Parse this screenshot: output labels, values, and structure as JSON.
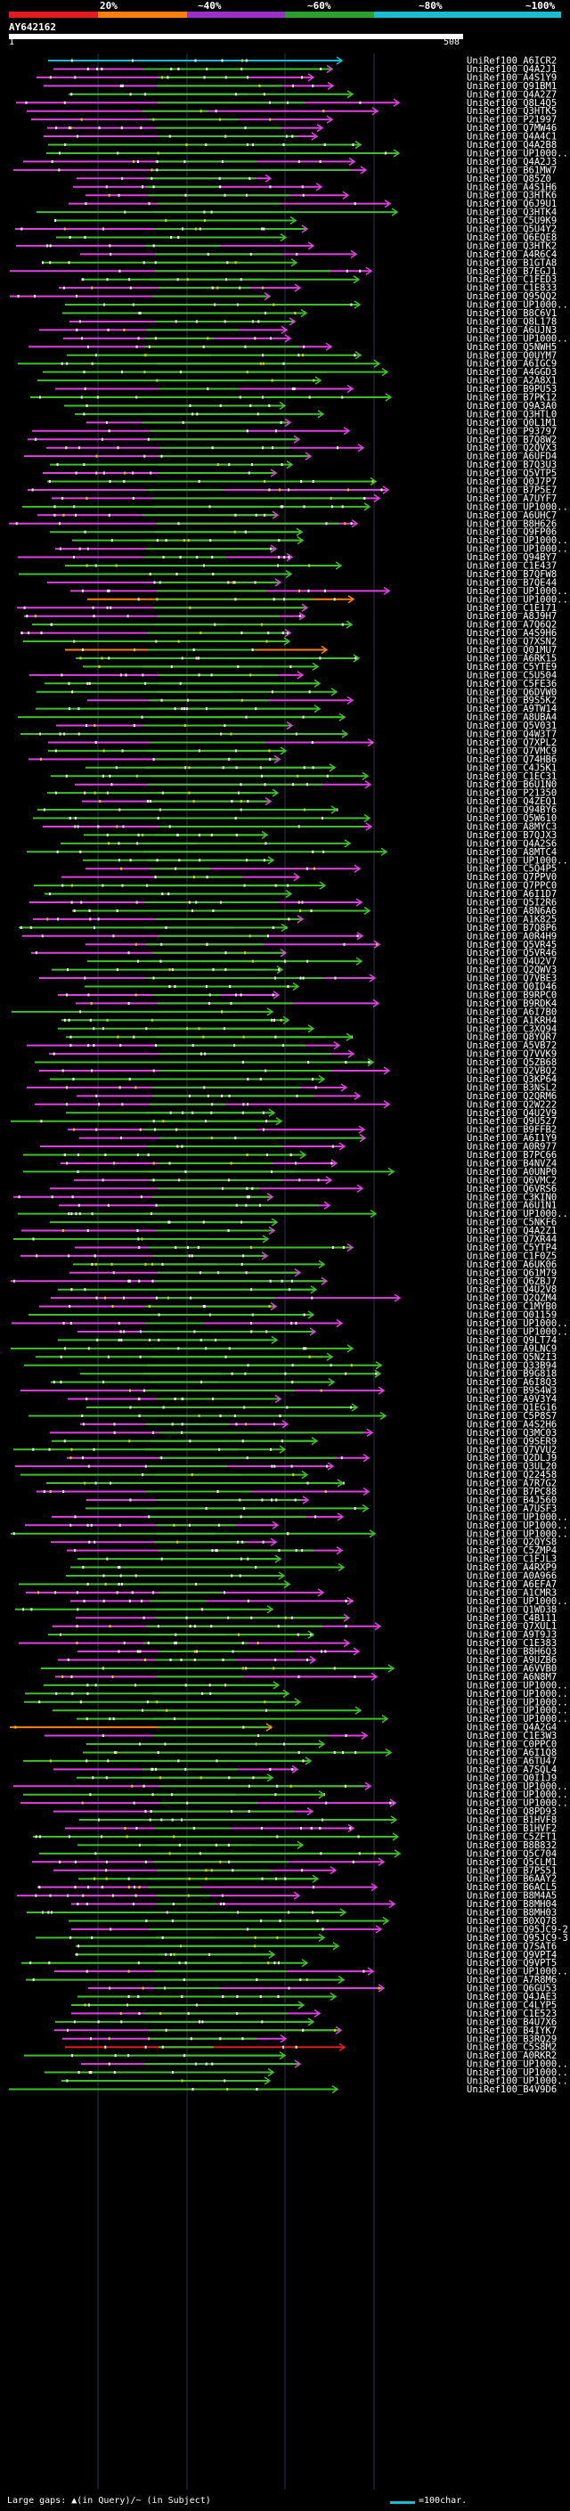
{
  "header": {
    "percent_labels": [
      "20%",
      "~40%",
      "~60%",
      "~80%",
      "~100%"
    ],
    "color_scale": [
      {
        "label": "20%",
        "color": "#e41a1c"
      },
      {
        "label": "~40%",
        "color": "#ff7f0e"
      },
      {
        "label": "~60%",
        "color": "#9b30c8"
      },
      {
        "label": "~80%",
        "color": "#2ca02c"
      },
      {
        "label": "~100%",
        "color": "#17becf"
      }
    ],
    "query_name": "AY642162",
    "scale_start": "1",
    "scale_end": "508"
  },
  "colors": {
    "magenta": "#e040e0",
    "green": "#3fbf2a",
    "orange": "#ff7f0e",
    "cyan": "#17becf",
    "red": "#e41a1c",
    "yellow": "#d8d800",
    "grid": "#2a3550"
  },
  "hits": [
    "UniRef100_A6ICR2",
    "UniRef100_Q4A2J1",
    "UniRef100_A4S1Y9",
    "UniRef100_Q91BM1",
    "UniRef100_Q4A2Z7",
    "UniRef100_Q8L4Q5",
    "UniRef100_Q3HTK5",
    "UniRef100_P21997",
    "UniRef100_Q7MW46",
    "UniRef100_Q4A4C1",
    "UniRef100_Q4A2B8",
    "UniRef100_UP1000...",
    "UniRef100_Q4A2J3",
    "UniRef100_B61MW7",
    "UniRef100_Q85Z0",
    "UniRef100_A4S1H6",
    "UniRef100_Q3HTK6",
    "UniRef100_Q6J9U1",
    "UniRef100_Q3HTK4",
    "UniRef100_C5U9K9",
    "UniRef100_Q5U4Y2",
    "UniRef100_Q6EQE8",
    "UniRef100_Q3HTK2",
    "UniRef100_A4R6C4",
    "UniRef100_B1GTA8",
    "UniRef100_B7EGJ1",
    "UniRef100_C1FED3",
    "UniRef100_C1E833",
    "UniRef100_Q95QQ2",
    "UniRef100_UP1000...",
    "UniRef100_B8C6V1",
    "UniRef100_Q8L178",
    "UniRef100_A6UJN3",
    "UniRef100_UP1000...",
    "UniRef100_Q5NWH5",
    "UniRef100_Q0UYM7",
    "UniRef100_A6IGC9",
    "UniRef100_A4GGD3",
    "UniRef100_A2A8X1",
    "UniRef100_B9PU53",
    "UniRef100_B7PK12",
    "UniRef100_Q9A3A0",
    "UniRef100_Q3HTL0",
    "UniRef100_Q0L1M1",
    "UniRef100_P93797",
    "UniRef100_B7Q8W2",
    "UniRef100_Q2QVX3",
    "UniRef100_A6UFD4",
    "UniRef100_B7Q3U3",
    "UniRef100_Q5VTP5",
    "UniRef100_Q0J7P7",
    "UniRef100_B7P5E7",
    "UniRef100_A7UYF7",
    "UniRef100_UP1000...",
    "UniRef100_A6UHC7",
    "UniRef100_B8H626",
    "UniRef100_Q9FP06",
    "UniRef100_UP1000...",
    "UniRef100_UP1000...",
    "UniRef100_Q94BY7",
    "UniRef100_C1E437",
    "UniRef100_B7QFW8",
    "UniRef100_B7QE44",
    "UniRef100_UP1000...",
    "UniRef100_UP1000...",
    "UniRef100_C1E171",
    "UniRef100_A8J9H7",
    "UniRef100_A7Q6Q2",
    "UniRef100_A4S9H6",
    "UniRef100_Q7XSN2",
    "UniRef100_Q01MU7",
    "UniRef100_A6RK15",
    "UniRef100_C5YTE9",
    "UniRef100_C5U504",
    "UniRef100_C5FE36",
    "UniRef100_Q6DVW0",
    "UniRef100_B9S5K2",
    "UniRef100_A9TW14",
    "UniRef100_A8UBA4",
    "UniRef100_Q5V031",
    "UniRef100_Q4W3T7",
    "UniRef100_Q7XPL2",
    "UniRef100_Q7VMC9",
    "UniRef100_Q74HB6",
    "UniRef100_C4J5K1",
    "UniRef100_C1EC31",
    "UniRef100_B6U1N0",
    "UniRef100_P21350",
    "UniRef100_Q4ZEQ1",
    "UniRef100_Q94BY6",
    "UniRef100_Q5W610",
    "UniRef100_A8MYC3",
    "UniRef100_B7QJX3",
    "UniRef100_Q4A2S6",
    "UniRef100_A8MTC4",
    "UniRef100_UP1000...",
    "UniRef100_C5Q4P5",
    "UniRef100_Q7PPV0",
    "UniRef100_Q7PPC0",
    "UniRef100_A6I1D7",
    "UniRef100_Q5I2R6",
    "UniRef100_A8N6A6",
    "UniRef100_A1K825",
    "UniRef100_B7Q8P6",
    "UniRef100_A0R4H9",
    "UniRef100_Q5VR45",
    "UniRef100_Q5VR46",
    "UniRef100_Q4U2V7",
    "UniRef100_Q2QWV3",
    "UniRef100_Q7VBE3",
    "UniRef100_Q0ID46",
    "UniRef100_B9RPC0",
    "UniRef100_B9RDK4",
    "UniRef100_A6I7B0",
    "UniRef100_A1KRH4",
    "UniRef100_C3XQ94",
    "UniRef100_Q8YQR7",
    "UniRef100_A5VB72",
    "UniRef100_Q7VVK9",
    "UniRef100_Q5ZB68",
    "UniRef100_Q2VBQ2",
    "UniRef100_Q3KP64",
    "UniRef100_B3NSL2",
    "UniRef100_Q2QRM6",
    "UniRef100_Q2W222",
    "UniRef100_Q4U2V9",
    "UniRef100_Q9U527",
    "UniRef100_B9FFB2",
    "UniRef100_A6I1Y9",
    "UniRef100_A0R977",
    "UniRef100_B7PC66",
    "UniRef100_B4NVZ4",
    "UniRef100_A0UNP0",
    "UniRef100_Q6VMC2",
    "UniRef100_Q6VRS6",
    "UniRef100_C3KIN0",
    "UniRef100_A6U1N1",
    "UniRef100_UP1000...",
    "UniRef100_C5NKF6",
    "UniRef100_Q4A2Z1",
    "UniRef100_Q7XR44",
    "UniRef100_C5YTP4",
    "UniRef100_C1F0Z5",
    "UniRef100_A6UK06",
    "UniRef100_Q61M79",
    "UniRef100_Q6ZBJ7",
    "UniRef100_Q4U2V8",
    "UniRef100_Q2QZM4",
    "UniRef100_C1MYB0",
    "UniRef100_Q01159",
    "UniRef100_UP1000...",
    "UniRef100_UP1000...",
    "UniRef100_Q9LT74",
    "UniRef100_A9LNC9",
    "UniRef100_Q5N2I3",
    "UniRef100_Q33B94",
    "UniRef100_B9G818",
    "UniRef100_A6I8Q3",
    "UniRef100_B9S4W3",
    "UniRef100_A9V3Y4",
    "UniRef100_Q1EG16",
    "UniRef100_C5P8S7",
    "UniRef100_A4S2H6",
    "UniRef100_Q3MC03",
    "UniRef100_Q9SER9",
    "UniRef100_Q7VVU2",
    "UniRef100_Q2DLJ9",
    "UniRef100_Q3UL20",
    "UniRef100_Q22458",
    "UniRef100_A7R7G2",
    "UniRef100_B7PC88",
    "UniRef100_B4J560",
    "UniRef100_A7USF3",
    "UniRef100_UP1000...",
    "UniRef100_UP1000...",
    "UniRef100_UP1000...",
    "UniRef100_Q2QYS8",
    "UniRef100_C5ZMP4",
    "UniRef100_C1FJL3",
    "UniRef100_A4RXP9",
    "UniRef100_A0A966",
    "UniRef100_A6EFA7",
    "UniRef100_A1CMR3",
    "UniRef100_UP1000...",
    "UniRef100_Q1WD38",
    "UniRef100_C4B111",
    "UniRef100_Q7XUL1",
    "UniRef100_A9T9J3",
    "UniRef100_C1E383",
    "UniRef100_B8H6Q3",
    "UniRef100_A9UZB6",
    "UniRef100_A6VVB0",
    "UniRef100_A6N8M7",
    "UniRef100_UP1000...",
    "UniRef100_UP1000...",
    "UniRef100_UP1000...",
    "UniRef100_UP1000...",
    "UniRef100_UP1000...",
    "UniRef100_Q4A2G4",
    "UniRef100_C1E3W3",
    "UniRef100_C0PPC0",
    "UniRef100_A6I1Q8",
    "UniRef100_A6TU47",
    "UniRef100_A7SQL4",
    "UniRef100_Q0I1J9",
    "UniRef100_UP1000...",
    "UniRef100_UP1000...",
    "UniRef100_UP1000...",
    "UniRef100_Q8PD93",
    "UniRef100_B1HVF8",
    "UniRef100_B1HVF2",
    "UniRef100_C5ZFT1",
    "UniRef100_B8B832",
    "UniRef100_Q5C704",
    "UniRef100_Q5CLM1",
    "UniRef100_B7PS51",
    "UniRef100_B6AAY2",
    "UniRef100_B6ACL5",
    "UniRef100_B8M4A5",
    "UniRef100_B8MH04",
    "UniRef100_B8MH03",
    "UniRef100_B0XQ78",
    "UniRef100_Q95JC9-2",
    "UniRef100_Q95JC9-3",
    "UniRef100_Q7SAT6",
    "UniRef100_Q9VPT4",
    "UniRef100_Q9VPT5",
    "UniRef100_UP1000...",
    "UniRef100_A7R8M6",
    "UniRef100_Q6GU53",
    "UniRef100_Q4JAE3",
    "UniRef100_C4LYP5",
    "UniRef100_C1E523",
    "UniRef100_B4U7X6",
    "UniRef100_B4IYK7",
    "UniRef100_B3RQ29",
    "UniRef100_C5S8M2",
    "UniRef100_A0RKR2",
    "UniRef100_UP1000...",
    "UniRef100_UP1000...",
    "UniRef100_UP1000...",
    "UniRef100_B4V9D6"
  ],
  "footer": {
    "large_gaps": "Large gaps: ▲(in Query)/~ (in Subject)",
    "scale_legend": "=100char."
  }
}
